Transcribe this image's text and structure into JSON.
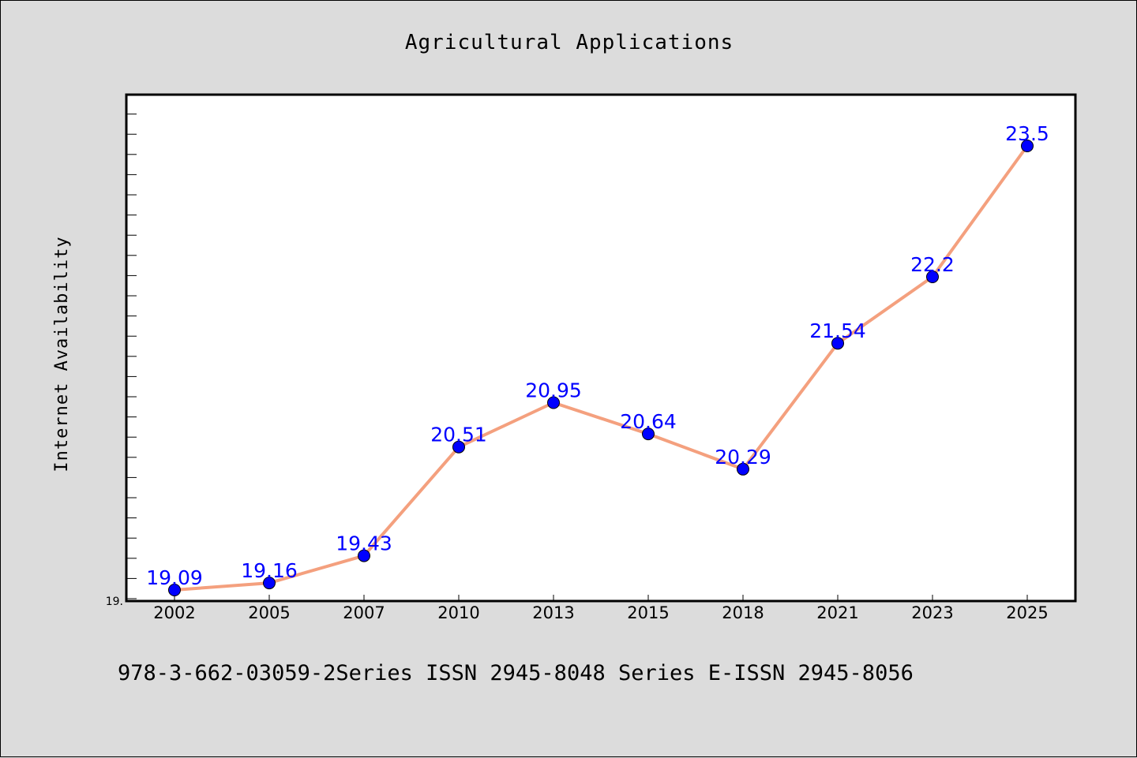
{
  "chart_data": {
    "type": "line",
    "title": "Agricultural Applications",
    "xlabel": "",
    "ylabel": "Internet Availability",
    "categories": [
      "2002",
      "2005",
      "2007",
      "2010",
      "2013",
      "2015",
      "2018",
      "2021",
      "2023",
      "2025"
    ],
    "series": [
      {
        "values": [
          19.09,
          19.16,
          19.43,
          20.51,
          20.95,
          20.64,
          20.29,
          21.54,
          22.2,
          23.5
        ]
      }
    ],
    "data_labels": [
      "19.09",
      "19.16",
      "19.43",
      "20.51",
      "20.95",
      "20.64",
      "20.29",
      "21.54",
      "22.2",
      "23.5"
    ],
    "y_tick_label": "19.",
    "ylim": [
      19,
      24
    ],
    "grid": false,
    "line_color": "#f4a07e",
    "marker_color": "#0000ff",
    "label_color": "#0000ff"
  },
  "footer": "978-3-662-03059-2Series ISSN 2945-8048 Series E-ISSN 2945-8056"
}
